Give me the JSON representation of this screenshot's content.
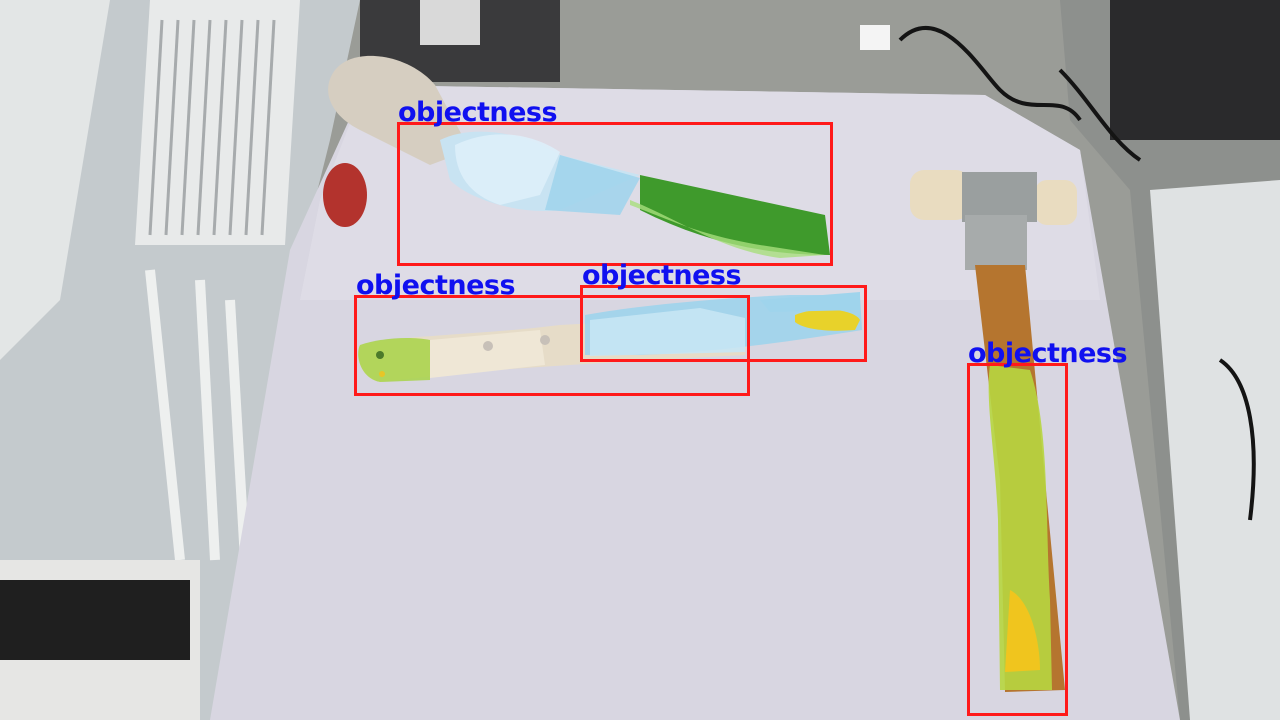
{
  "overlay": {
    "box_color": "#ff1a1a",
    "label_color": "#1010f0"
  },
  "detections": [
    {
      "label": "objectness"
    },
    {
      "label": "objectness"
    },
    {
      "label": "objectness"
    },
    {
      "label": "objectness"
    }
  ],
  "colors": {
    "table": "#d7d5e0",
    "wall": "#c8cdcf",
    "knife_green": "#3f9a2c",
    "mask_yellow": "#e8d22a",
    "mask_blue": "#9fd4ec",
    "hammer_handle": "#b5752f",
    "hammer_head": "#e9dcc0"
  }
}
